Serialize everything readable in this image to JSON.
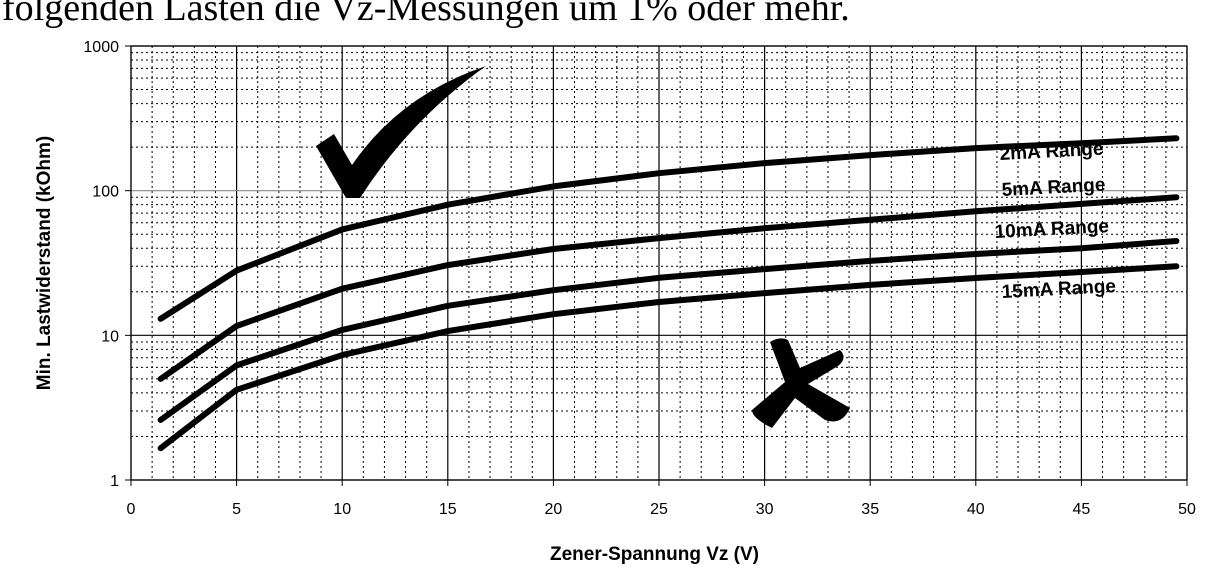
{
  "heading": "folgenden Lasten die Vz-Messungen um 1% oder mehr.",
  "chart_data": {
    "type": "line",
    "xlabel": "Zener-Spannung Vz (V)",
    "ylabel": "Min. Lastwiderstand (kOhm)",
    "yscale": "log",
    "grid": true,
    "color": "#000000",
    "xlim": [
      0,
      50
    ],
    "ylim": [
      1,
      1000
    ],
    "xticks": [
      0,
      5,
      10,
      15,
      20,
      25,
      30,
      35,
      40,
      45,
      50
    ],
    "yticks": [
      1,
      10,
      100,
      1000
    ],
    "minor_xticks": [
      1,
      2,
      3,
      4,
      6,
      7,
      8,
      9,
      11,
      12,
      13,
      14,
      16,
      17,
      18,
      19,
      21,
      22,
      23,
      24,
      26,
      27,
      28,
      29,
      31,
      32,
      33,
      34,
      36,
      37,
      38,
      39,
      41,
      42,
      43,
      44,
      46,
      47,
      48,
      49
    ],
    "minor_yticks": [
      2,
      3,
      4,
      5,
      6,
      7,
      8,
      9,
      20,
      30,
      40,
      50,
      60,
      70,
      80,
      90,
      200,
      300,
      400,
      500,
      600,
      700,
      800,
      900
    ],
    "x": [
      1.4,
      5,
      10,
      15,
      20,
      25,
      30,
      35,
      40,
      45,
      49.5
    ],
    "series": [
      {
        "name": "2mA Range",
        "color": "#000000",
        "values": [
          13,
          28,
          54,
          80,
          107,
          132,
          155,
          176,
          197,
          213,
          230
        ]
      },
      {
        "name": "5mA Range",
        "color": "#000000",
        "values": [
          5,
          11.6,
          21,
          30.6,
          39.5,
          47,
          55,
          63,
          72,
          81,
          90
        ]
      },
      {
        "name": "10mA Range",
        "color": "#000000",
        "values": [
          2.6,
          6.2,
          10.9,
          16,
          20.5,
          25,
          28.7,
          32.7,
          36.5,
          40,
          44.9
        ]
      },
      {
        "name": "15mA Range",
        "color": "#000000",
        "values": [
          1.66,
          4.2,
          7.3,
          10.7,
          14,
          17,
          19.6,
          22.3,
          24.9,
          27.4,
          30
        ]
      }
    ]
  }
}
